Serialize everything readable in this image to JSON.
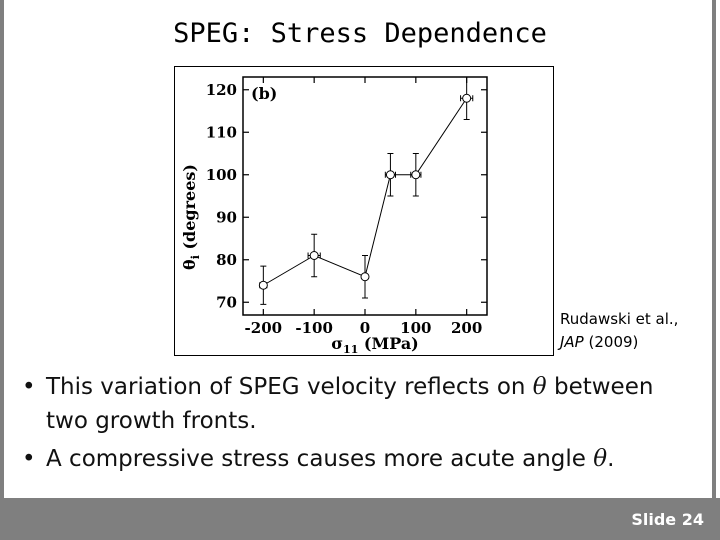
{
  "slide": {
    "title": "SPEG: Stress Dependence",
    "number_label": "Slide 24"
  },
  "citation": {
    "authors": "Rudawski et al.,",
    "journal": "JAP",
    "year": "(2009)"
  },
  "bullets": [
    {
      "part1": "This variation of SPEG velocity reflects on ",
      "symbol": "θ",
      "part2": " between two growth fronts."
    },
    {
      "part1": "A compressive stress causes more acute angle ",
      "symbol": "θ",
      "part2": "."
    }
  ],
  "chart_data": {
    "type": "line",
    "panel_label": "(b)",
    "xlabel": "σ11 (MPa)",
    "ylabel": "θi (degrees)",
    "xlim": [
      -240,
      240
    ],
    "ylim": [
      67,
      123
    ],
    "xticks": [
      -200,
      -100,
      0,
      100,
      200
    ],
    "yticks": [
      70,
      80,
      90,
      100,
      110,
      120
    ],
    "tick_labels_x": [
      "-200",
      "-100",
      "0",
      "100",
      "200"
    ],
    "tick_labels_y": [
      "70",
      "80",
      "90",
      "100",
      "110",
      "120"
    ],
    "grid": false,
    "series": [
      {
        "points": [
          {
            "x": -200,
            "y": 74,
            "yerr": 4.5,
            "xerr": 7
          },
          {
            "x": -100,
            "y": 81,
            "yerr": 5,
            "xerr": 12
          },
          {
            "x": 0,
            "y": 76,
            "yerr": 5,
            "xerr": 5
          },
          {
            "x": 50,
            "y": 100,
            "yerr": 5,
            "xerr": 10
          },
          {
            "x": 100,
            "y": 100,
            "yerr": 5,
            "xerr": 10
          },
          {
            "x": 200,
            "y": 118,
            "yerr": 5,
            "xerr": 12
          }
        ]
      }
    ]
  }
}
